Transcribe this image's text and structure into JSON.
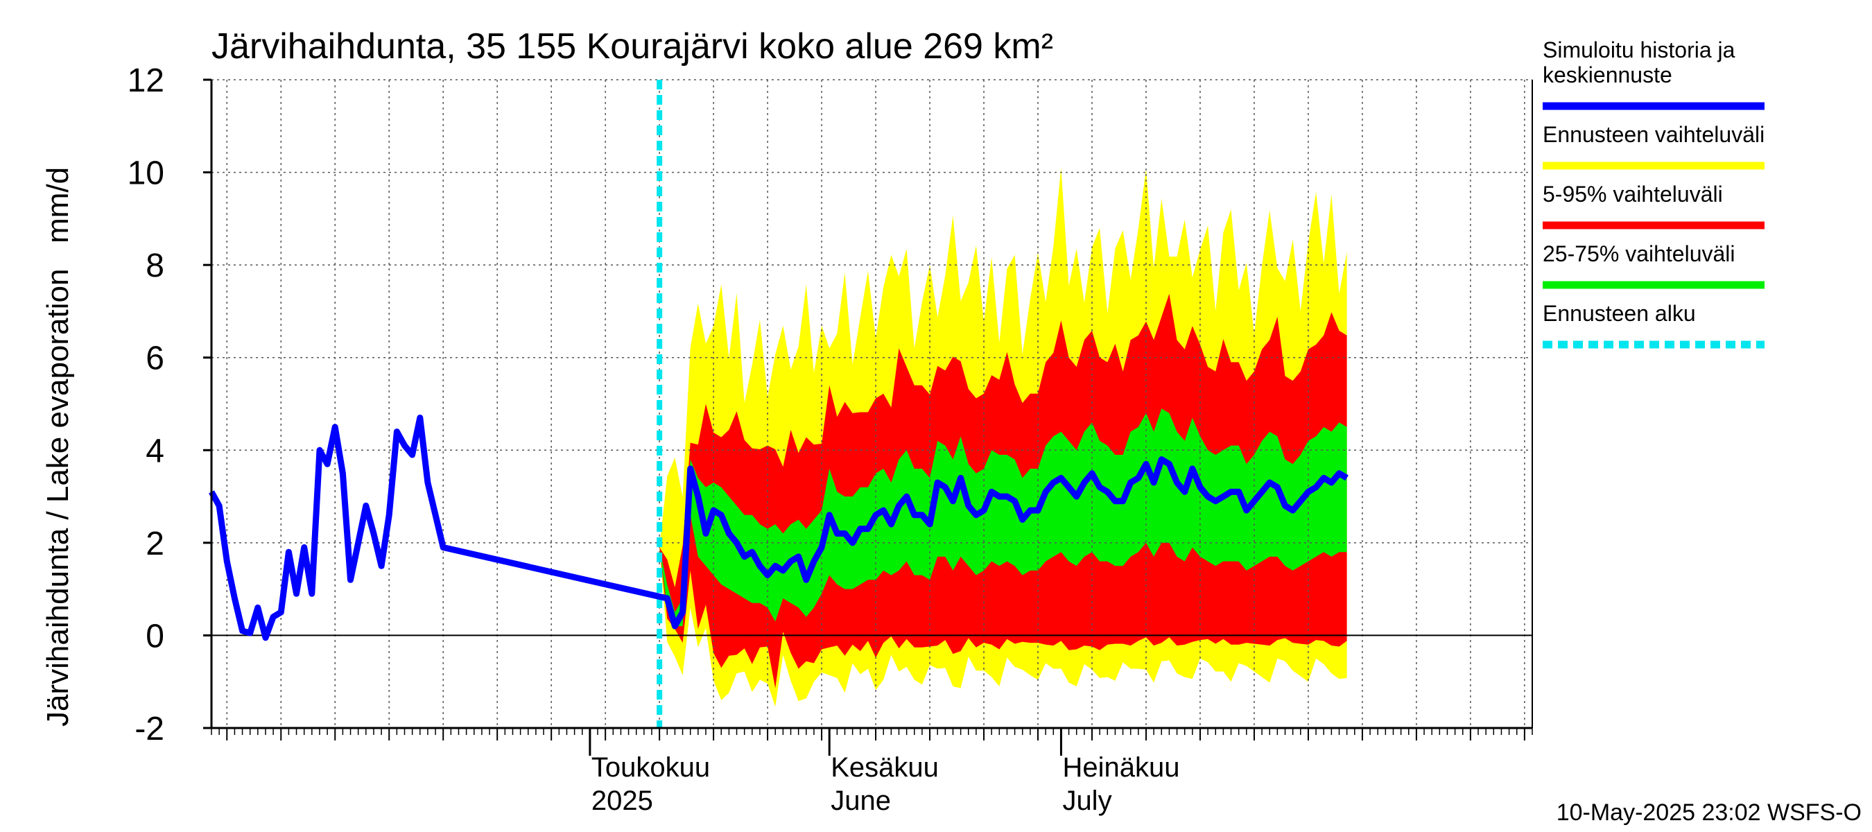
{
  "chart_data": {
    "type": "area",
    "title": "Järvihaihdunta, 35 155 Kourajärvi koko alue 269 km²",
    "ylabel": "Järvihaihdunta / Lake evaporation   mm/d",
    "ylim": [
      -2,
      12
    ],
    "yticks": [
      -2,
      0,
      2,
      4,
      6,
      8,
      10,
      12
    ],
    "grid": true,
    "legend_position": "right",
    "x_range_days": [
      -58,
      113
    ],
    "month_labels": [
      {
        "line1": "Toukokuu",
        "line2": "2025",
        "day": -9
      },
      {
        "line1": "Kesäkuu",
        "line2": "June",
        "day": 22
      },
      {
        "line1": "Heinäkuu",
        "line2": "July",
        "day": 52
      }
    ],
    "forecast_start_day": 0,
    "timestamp": "10-May-2025 23:02 WSFS-O",
    "colors": {
      "history": "#0000ff",
      "full_range": "#ffff00",
      "range_5_95": "#ff0000",
      "range_25_75": "#00ee00",
      "forecast_start": "#00e5ee"
    },
    "legend": [
      {
        "key": "history",
        "lines": [
          "Simuloitu historia ja",
          "keskiennuste"
        ],
        "style": "line"
      },
      {
        "key": "full_range",
        "lines": [
          "Ennusteen vaihteluväli"
        ],
        "style": "line"
      },
      {
        "key": "range_5_95",
        "lines": [
          "5-95% vaihteluväli"
        ],
        "style": "line"
      },
      {
        "key": "range_25_75",
        "lines": [
          "25-75% vaihteluväli"
        ],
        "style": "line"
      },
      {
        "key": "forecast_start",
        "lines": [
          "Ennusteen alku"
        ],
        "style": "dashed"
      }
    ],
    "history": {
      "start_day": -58,
      "values": [
        3.1,
        2.8,
        1.6,
        0.8,
        0.1,
        0.05,
        0.6,
        -0.05,
        0.4,
        0.5,
        1.8,
        0.9,
        1.9,
        0.9,
        4.0,
        3.7,
        4.5,
        3.5,
        1.2,
        2.0,
        2.8,
        2.2,
        1.5,
        2.6,
        4.4,
        4.1,
        3.9,
        4.7,
        3.3,
        2.6,
        1.9
      ]
    },
    "forecast": {
      "start_day": 0,
      "mean": [
        1.9,
        0.8,
        0.2,
        0.5,
        3.6,
        3.0,
        2.2,
        2.7,
        2.6,
        2.2,
        2.0,
        1.7,
        1.8,
        1.5,
        1.3,
        1.5,
        1.4,
        1.6,
        1.7,
        1.2,
        1.6,
        1.9,
        2.6,
        2.2,
        2.2,
        2.0,
        2.3,
        2.3,
        2.6,
        2.7,
        2.4,
        2.8,
        3.0,
        2.6,
        2.6,
        2.4,
        3.3,
        3.2,
        2.9,
        3.4,
        2.8,
        2.6,
        2.7,
        3.1,
        3.0,
        3.0,
        2.9,
        2.5,
        2.7,
        2.7,
        3.1,
        3.3,
        3.4,
        3.2,
        3.0,
        3.3,
        3.5,
        3.2,
        3.1,
        2.9,
        2.9,
        3.3,
        3.4,
        3.7,
        3.3,
        3.8,
        3.7,
        3.3,
        3.1,
        3.6,
        3.2,
        3.0,
        2.9,
        3.0,
        3.1,
        3.1,
        2.7,
        2.9,
        3.1,
        3.3,
        3.2,
        2.8,
        2.7,
        2.9,
        3.1,
        3.2,
        3.4,
        3.3,
        3.5,
        3.4
      ],
      "p25": [
        1.9,
        0.6,
        0.2,
        0.2,
        2.6,
        1.7,
        1.5,
        1.3,
        1.1,
        1.0,
        0.9,
        0.8,
        0.7,
        0.7,
        0.6,
        0.3,
        0.8,
        0.7,
        0.6,
        0.4,
        0.6,
        0.9,
        1.3,
        1.1,
        1.0,
        1.0,
        1.1,
        1.2,
        1.2,
        1.4,
        1.3,
        1.4,
        1.6,
        1.3,
        1.3,
        1.2,
        1.7,
        1.7,
        1.4,
        1.7,
        1.5,
        1.3,
        1.4,
        1.6,
        1.5,
        1.6,
        1.5,
        1.3,
        1.4,
        1.4,
        1.6,
        1.7,
        1.8,
        1.6,
        1.5,
        1.7,
        1.8,
        1.6,
        1.6,
        1.5,
        1.5,
        1.7,
        1.8,
        2.0,
        1.7,
        2.0,
        2.0,
        1.7,
        1.6,
        1.9,
        1.7,
        1.6,
        1.5,
        1.6,
        1.6,
        1.6,
        1.4,
        1.5,
        1.6,
        1.7,
        1.7,
        1.5,
        1.4,
        1.5,
        1.6,
        1.7,
        1.8,
        1.7,
        1.8,
        1.8
      ],
      "p75": [
        1.9,
        1.1,
        0.5,
        0.8,
        3.8,
        3.4,
        3.2,
        3.3,
        3.2,
        3.0,
        2.8,
        2.6,
        2.6,
        2.4,
        2.3,
        2.4,
        2.2,
        2.4,
        2.5,
        2.3,
        2.5,
        2.7,
        3.6,
        3.1,
        3.0,
        3.0,
        3.2,
        3.2,
        3.5,
        3.6,
        3.3,
        3.8,
        4.0,
        3.6,
        3.6,
        3.4,
        4.2,
        4.1,
        3.8,
        4.3,
        3.7,
        3.5,
        3.6,
        4.0,
        3.9,
        3.9,
        3.8,
        3.4,
        3.6,
        3.6,
        4.1,
        4.3,
        4.4,
        4.2,
        4.0,
        4.4,
        4.6,
        4.2,
        4.1,
        3.9,
        3.9,
        4.4,
        4.5,
        4.8,
        4.4,
        4.9,
        4.8,
        4.4,
        4.2,
        4.7,
        4.3,
        4.0,
        3.9,
        4.0,
        4.1,
        4.1,
        3.7,
        3.9,
        4.2,
        4.4,
        4.3,
        3.8,
        3.7,
        3.9,
        4.2,
        4.3,
        4.5,
        4.4,
        4.6,
        4.5
      ]
    }
  }
}
